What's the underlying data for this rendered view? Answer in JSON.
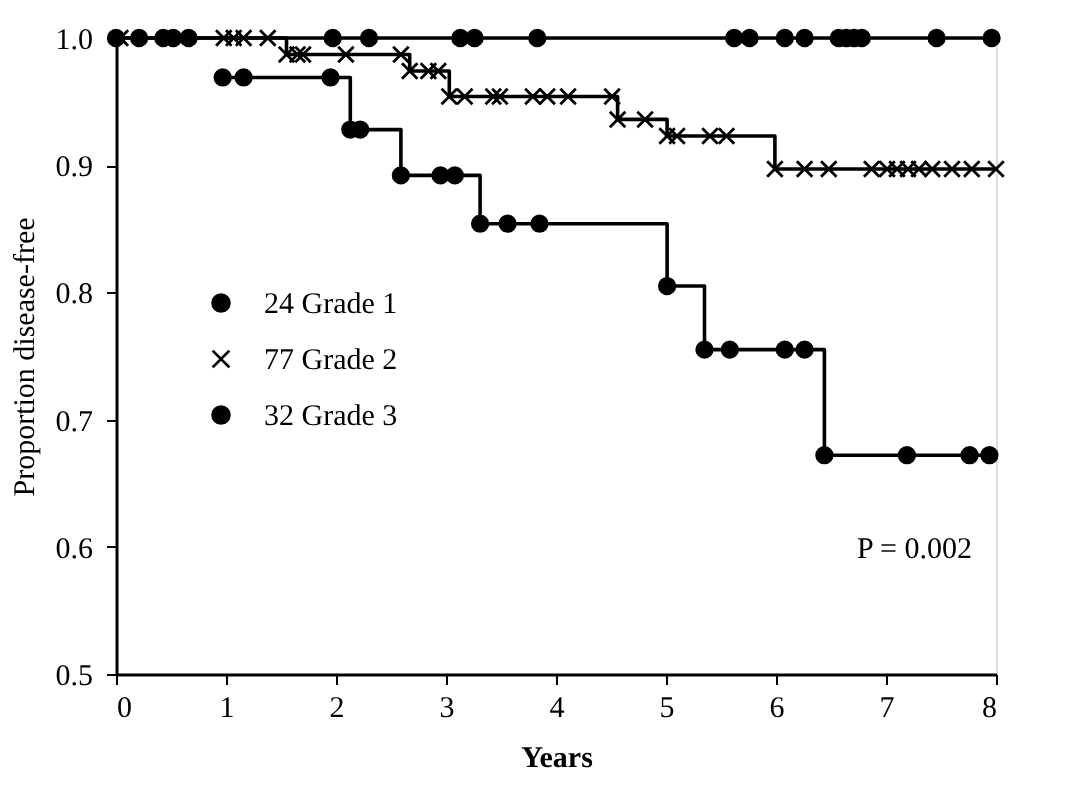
{
  "chart_data": {
    "type": "step",
    "xlabel": "Years",
    "ylabel": "Proportion disease-free",
    "xlim": [
      0,
      8
    ],
    "xticks": [
      0,
      1,
      2,
      3,
      4,
      5,
      6,
      7,
      8
    ],
    "ylim": [
      0.5,
      1.0
    ],
    "yticks": [
      0.5,
      0.6,
      0.7,
      0.8,
      0.9,
      {
        "value": 1,
        "label": "1.0"
      }
    ],
    "grid": false,
    "legend": "left",
    "annotations": [
      "P = 0.002"
    ],
    "series": [
      {
        "name": "24 Grade 1",
        "color": "#000000",
        "marker": "circle",
        "x": [
          0,
          0.21,
          0.43,
          0.52,
          0.66,
          1.97,
          2.3,
          3.13,
          3.26,
          3.83,
          5.62,
          5.76,
          6.08,
          6.26,
          6.57,
          6.64,
          6.71,
          6.78,
          7.46,
          7.96
        ],
        "values": [
          1.0,
          1.0,
          1.0,
          1.0,
          1.0,
          1.0,
          1.0,
          1.0,
          1.0,
          1.0,
          1.0,
          1.0,
          1.0,
          1.0,
          1.0,
          1.0,
          1.0,
          1.0,
          1.0,
          1.0
        ]
      },
      {
        "name": "77 Grade 2",
        "color": "#000000",
        "marker": "cross",
        "x": [
          0.04,
          0.98,
          1.07,
          1.16,
          1.38,
          1.55,
          1.65,
          1.7,
          2.09,
          2.59,
          2.67,
          2.84,
          2.93,
          3.03,
          3.17,
          3.43,
          3.49,
          3.79,
          3.92,
          4.11,
          4.51,
          4.56,
          4.81,
          5.01,
          5.1,
          5.4,
          5.55,
          5.99,
          6.26,
          6.48,
          6.87,
          7.01,
          7.1,
          7.2,
          7.3,
          7.42,
          7.6,
          7.78,
          8.0
        ],
        "values": [
          1.0,
          1.0,
          1.0,
          1.0,
          1.0,
          0.987,
          0.987,
          0.987,
          0.987,
          0.987,
          0.974,
          0.974,
          0.974,
          0.954,
          0.954,
          0.954,
          0.954,
          0.954,
          0.954,
          0.954,
          0.954,
          0.936,
          0.936,
          0.923,
          0.923,
          0.923,
          0.923,
          0.897,
          0.897,
          0.897,
          0.897,
          0.897,
          0.897,
          0.897,
          0.897,
          0.897,
          0.897,
          0.897,
          0.897
        ]
      },
      {
        "name": "32 Grade 3",
        "color": "#000000",
        "marker": "circle",
        "x": [
          0.97,
          1.16,
          1.95,
          2.13,
          2.22,
          2.59,
          2.95,
          3.08,
          3.31,
          3.56,
          3.85,
          5.01,
          5.35,
          5.58,
          6.08,
          6.26,
          6.44,
          7.19,
          7.76,
          7.94
        ],
        "values": [
          0.969,
          0.969,
          0.969,
          0.928,
          0.928,
          0.892,
          0.892,
          0.892,
          0.854,
          0.854,
          0.854,
          0.805,
          0.755,
          0.755,
          0.755,
          0.755,
          0.672,
          0.672,
          0.672,
          0.672
        ]
      }
    ]
  }
}
